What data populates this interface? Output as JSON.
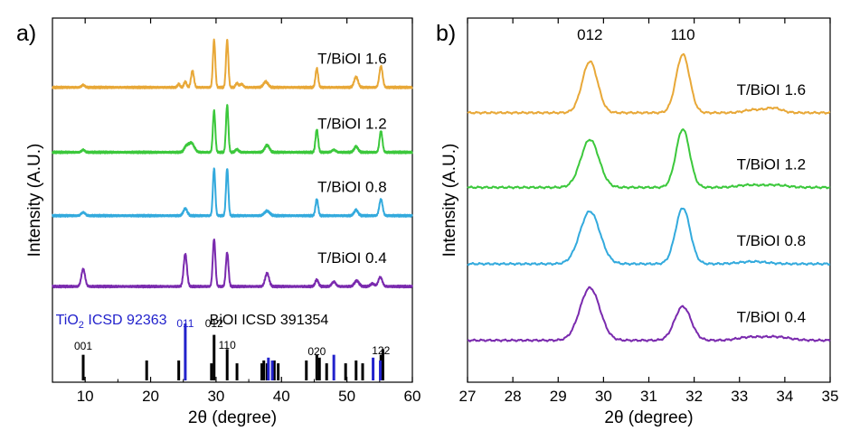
{
  "chart_data": [
    {
      "type": "line",
      "panel_label": "a)",
      "xlabel": "2θ (degree)",
      "ylabel": "Intensity (A.U.)",
      "xlim": [
        5,
        60
      ],
      "xticks": [
        10,
        20,
        30,
        40,
        50,
        60
      ],
      "grid": false,
      "series": [
        {
          "name": "T/BiOI 1.6",
          "color": "#E8A838",
          "baseline_level": 0.765,
          "noise": 0.004,
          "peaks": [
            [
              9.7,
              0.05,
              0.25
            ],
            [
              24.3,
              0.07,
              0.18
            ],
            [
              25.3,
              0.12,
              0.2
            ],
            [
              26.4,
              0.35,
              0.22
            ],
            [
              29.7,
              1.0,
              0.18
            ],
            [
              31.7,
              1.0,
              0.18
            ],
            [
              33.2,
              0.09,
              0.2
            ],
            [
              33.9,
              0.07,
              0.25
            ],
            [
              37.6,
              0.12,
              0.35
            ],
            [
              45.4,
              0.4,
              0.2
            ],
            [
              51.4,
              0.22,
              0.3
            ],
            [
              55.2,
              0.45,
              0.25
            ]
          ]
        },
        {
          "name": "T/BiOI 1.2",
          "color": "#3CC83C",
          "baseline_level": 0.545,
          "noise": 0.004,
          "peaks": [
            [
              9.7,
              0.05,
              0.25
            ],
            [
              25.4,
              0.1,
              0.3
            ],
            [
              26.2,
              0.2,
              0.45
            ],
            [
              29.7,
              0.88,
              0.18
            ],
            [
              31.7,
              1.0,
              0.18
            ],
            [
              33.2,
              0.06,
              0.25
            ],
            [
              37.8,
              0.15,
              0.35
            ],
            [
              45.4,
              0.48,
              0.2
            ],
            [
              48.0,
              0.05,
              0.3
            ],
            [
              51.4,
              0.12,
              0.3
            ],
            [
              55.2,
              0.45,
              0.22
            ]
          ]
        },
        {
          "name": "T/BiOI 0.8",
          "color": "#33AADD",
          "baseline_level": 0.33,
          "noise": 0.004,
          "peaks": [
            [
              9.7,
              0.07,
              0.3
            ],
            [
              25.3,
              0.15,
              0.3
            ],
            [
              29.7,
              1.0,
              0.18
            ],
            [
              31.7,
              1.0,
              0.18
            ],
            [
              37.8,
              0.1,
              0.4
            ],
            [
              45.4,
              0.35,
              0.2
            ],
            [
              51.4,
              0.12,
              0.3
            ],
            [
              55.2,
              0.35,
              0.25
            ]
          ]
        },
        {
          "name": "T/BiOI 0.4",
          "color": "#7A2AAE",
          "baseline_level": 0.09,
          "noise": 0.004,
          "peaks": [
            [
              9.7,
              0.37,
              0.28
            ],
            [
              25.3,
              0.69,
              0.25
            ],
            [
              29.7,
              1.0,
              0.2
            ],
            [
              31.7,
              0.72,
              0.2
            ],
            [
              37.8,
              0.28,
              0.3
            ],
            [
              45.4,
              0.14,
              0.25
            ],
            [
              48.0,
              0.1,
              0.3
            ],
            [
              51.5,
              0.12,
              0.35
            ],
            [
              53.9,
              0.06,
              0.3
            ],
            [
              55.1,
              0.2,
              0.3
            ]
          ]
        }
      ],
      "reference_labels": [
        {
          "text": "TiO",
          "sub": "2",
          "tail": " ICSD 92363",
          "color": "#2222CC"
        },
        {
          "text": "BiOI ICSD 391354",
          "color": "#000000"
        }
      ],
      "reference_bars": {
        "black": {
          "color": "#000000",
          "positions": [
            9.7,
            19.4,
            24.3,
            29.3,
            29.7,
            31.7,
            33.2,
            37.0,
            37.3,
            37.8,
            38.9,
            39.5,
            43.8,
            45.4,
            45.8,
            46.9,
            49.8,
            51.4,
            52.4,
            55.2,
            55.5
          ],
          "heights": [
            0.45,
            0.35,
            0.35,
            0.3,
            0.8,
            0.55,
            0.3,
            0.3,
            0.35,
            0.3,
            0.35,
            0.3,
            0.35,
            0.45,
            0.4,
            0.3,
            0.3,
            0.35,
            0.3,
            0.45,
            0.55
          ]
        },
        "blue": {
          "color": "#2222CC",
          "positions": [
            25.3,
            38.0,
            38.6,
            48.0,
            54.0,
            55.1
          ],
          "heights": [
            1.0,
            0.4,
            0.35,
            0.45,
            0.4,
            0.35
          ]
        }
      },
      "reference_annotations": [
        {
          "text": "001",
          "x": 9.7,
          "color": "#000000"
        },
        {
          "text": "011",
          "x": 25.3,
          "color": "#2222CC"
        },
        {
          "text": "012",
          "x": 29.7,
          "color": "#000000"
        },
        {
          "text": "110",
          "x": 31.7,
          "color": "#000000"
        },
        {
          "text": "020",
          "x": 45.4,
          "color": "#000000"
        },
        {
          "text": "122",
          "x": 55.2,
          "color": "#000000"
        }
      ]
    },
    {
      "type": "line",
      "panel_label": "b)",
      "xlabel": "2θ (degree)",
      "ylabel": "Intensity (A.U.)",
      "xlim": [
        27,
        35
      ],
      "xticks": [
        27,
        28,
        29,
        30,
        31,
        32,
        33,
        34,
        35
      ],
      "grid": false,
      "peak_labels": [
        {
          "text": "012",
          "x": 29.7
        },
        {
          "text": "110",
          "x": 31.75
        }
      ],
      "series": [
        {
          "name": "T/BiOI 1.6",
          "color": "#E8A838",
          "baseline_level": 0.74,
          "noise": 0.003,
          "peaks": [
            [
              29.7,
              0.88,
              0.17
            ],
            [
              31.75,
              1.0,
              0.15
            ],
            [
              33.3,
              0.05,
              0.2
            ],
            [
              33.75,
              0.08,
              0.18
            ]
          ]
        },
        {
          "name": "T/BiOI 1.2",
          "color": "#3CC83C",
          "baseline_level": 0.535,
          "noise": 0.003,
          "peaks": [
            [
              29.7,
              0.82,
              0.2
            ],
            [
              31.75,
              1.0,
              0.15
            ],
            [
              33.2,
              0.04,
              0.25
            ],
            [
              33.8,
              0.04,
              0.25
            ]
          ]
        },
        {
          "name": "T/BiOI 0.8",
          "color": "#33AADD",
          "baseline_level": 0.325,
          "noise": 0.003,
          "peaks": [
            [
              29.7,
              0.9,
              0.22
            ],
            [
              31.75,
              0.96,
              0.16
            ],
            [
              33.3,
              0.04,
              0.3
            ]
          ]
        },
        {
          "name": "T/BiOI 0.4",
          "color": "#7A2AAE",
          "baseline_level": 0.115,
          "noise": 0.003,
          "peaks": [
            [
              29.7,
              0.9,
              0.22
            ],
            [
              31.75,
              0.58,
              0.18
            ],
            [
              33.2,
              0.05,
              0.25
            ],
            [
              33.8,
              0.06,
              0.3
            ]
          ]
        }
      ]
    }
  ]
}
